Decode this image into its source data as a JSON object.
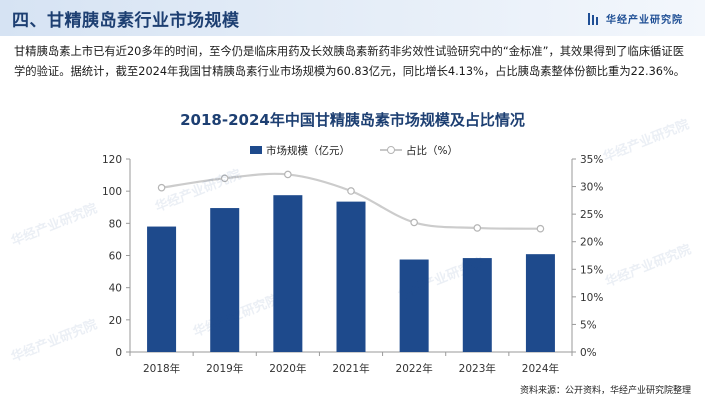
{
  "header": {
    "title": "四、甘精胰岛素行业市场规模",
    "brand": "华经产业研究院"
  },
  "intro": "甘精胰岛素上市已有近20多年的时间，至今仍是临床用药及长效胰岛素新药非劣效性试验研究中的“金标准”，其效果得到了临床循证医学的验证。据统计，截至2024年我国甘精胰岛素行业市场规模为60.83亿元，同比增长4.13%，占比胰岛素整体份额比重为22.36%。",
  "watermark": "华经产业研究院",
  "source": "资料来源：公开资料，华经产业研究院整理",
  "colors": {
    "bar": "#1e4a8c",
    "line": "#cccccc",
    "title": "#1d3f72"
  },
  "chart_data": {
    "type": "bar",
    "title": "2018-2024年中国甘精胰岛素市场规模及占比情况",
    "categories": [
      "2018年",
      "2019年",
      "2020年",
      "2021年",
      "2022年",
      "2023年",
      "2024年"
    ],
    "series": [
      {
        "name": "市场规模（亿元）",
        "type": "bar",
        "axis": "left",
        "values": [
          78,
          89.5,
          97.5,
          93.5,
          57.5,
          58.4,
          60.83
        ]
      },
      {
        "name": "占比（%）",
        "type": "line",
        "axis": "right",
        "values": [
          29.8,
          31.5,
          32.2,
          29.2,
          23.5,
          22.5,
          22.36
        ]
      }
    ],
    "ylim": [
      0,
      120
    ],
    "yticks": [
      0,
      20,
      40,
      60,
      80,
      100,
      120
    ],
    "y2lim": [
      0,
      35
    ],
    "y2ticks": [
      "0%",
      "5%",
      "10%",
      "15%",
      "20%",
      "25%",
      "30%",
      "35%"
    ],
    "legend": "top-center",
    "grid": false
  }
}
